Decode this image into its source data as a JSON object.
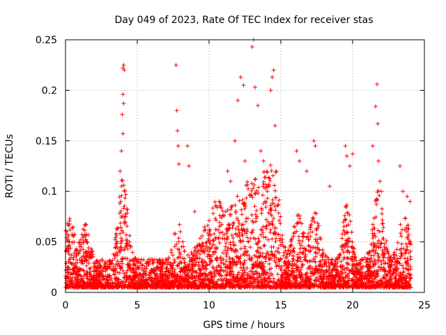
{
  "chart_data": {
    "type": "scatter",
    "title": "Day 049 of 2023, Rate Of TEC Index for receiver stas",
    "xlabel": "GPS time / hours",
    "ylabel": "ROTI / TECUs",
    "xlim": [
      0,
      25
    ],
    "ylim": [
      0,
      0.25
    ],
    "xticks": [
      0,
      5,
      10,
      15,
      20,
      25
    ],
    "xtick_labels": [
      "0",
      "5",
      "10",
      "15",
      "20",
      "25"
    ],
    "yticks": [
      0,
      0.05,
      0.1,
      0.15,
      0.2,
      0.25
    ],
    "ytick_labels": [
      "0",
      "0.05",
      "0.1",
      "0.15",
      "0.2",
      "0.25"
    ],
    "grid": true,
    "marker": "+",
    "color": "#ff0000",
    "series": [
      {
        "name": "ROTI",
        "x": [
          3.8,
          3.9,
          4.0,
          4.0,
          4.05,
          4.1,
          4.05,
          3.95,
          4.0,
          3.9,
          3.85,
          4.1,
          4.2,
          7.7,
          7.75,
          7.8,
          7.85,
          7.9,
          8.5,
          8.6,
          9.0,
          11.3,
          11.5,
          11.8,
          12.0,
          12.2,
          12.4,
          12.5,
          13.0,
          13.1,
          13.2,
          13.4,
          13.6,
          13.8,
          14.3,
          14.4,
          14.5,
          14.6,
          14.7,
          14.55,
          16.1,
          16.3,
          16.8,
          17.3,
          17.4,
          18.4,
          19.5,
          19.6,
          19.8,
          20.0,
          21.4,
          21.6,
          21.7,
          21.75,
          21.8,
          21.9,
          22.0,
          23.3,
          23.5,
          23.8,
          24.0
        ],
        "y": [
          0.12,
          0.14,
          0.196,
          0.222,
          0.225,
          0.22,
          0.187,
          0.176,
          0.157,
          0.105,
          0.09,
          0.1,
          0.075,
          0.225,
          0.18,
          0.16,
          0.145,
          0.127,
          0.145,
          0.125,
          0.08,
          0.12,
          0.11,
          0.15,
          0.19,
          0.213,
          0.205,
          0.13,
          0.243,
          0.25,
          0.203,
          0.185,
          0.14,
          0.13,
          0.2,
          0.213,
          0.22,
          0.165,
          0.12,
          0.106,
          0.14,
          0.13,
          0.12,
          0.15,
          0.145,
          0.105,
          0.145,
          0.135,
          0.125,
          0.137,
          0.145,
          0.184,
          0.206,
          0.167,
          0.13,
          0.11,
          0.1,
          0.125,
          0.1,
          0.095,
          0.09
        ]
      }
    ]
  }
}
